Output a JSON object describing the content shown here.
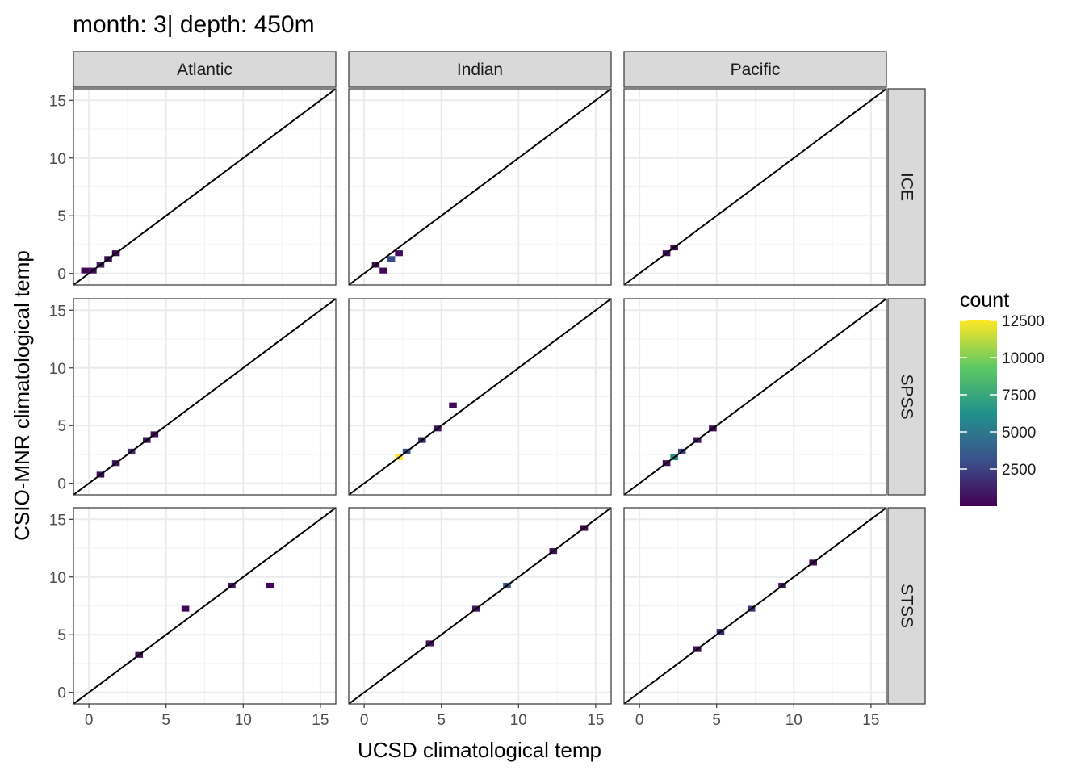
{
  "chart_data": {
    "type": "heatmap",
    "title": "month: 3| depth: 450m",
    "xlabel": "UCSD climatological temp",
    "ylabel": "CSIO-MNR climatological temp",
    "xlim": [
      -1,
      16
    ],
    "ylim": [
      -1,
      16
    ],
    "xticks": [
      "0",
      "5",
      "10",
      "15"
    ],
    "yticks": [
      "0",
      "5",
      "10",
      "15"
    ],
    "col_facets": [
      "Atlantic",
      "Indian",
      "Pacific"
    ],
    "row_facets": [
      "ICE",
      "SPSS",
      "STSS"
    ],
    "bin_width": 0.5,
    "reference_line": "y = x",
    "legend": {
      "title": "count",
      "position": "right",
      "min": 0,
      "max": 12500,
      "ticks": [
        "2500",
        "5000",
        "7500",
        "10000",
        "12500"
      ],
      "colors": [
        "#440154",
        "#3b528b",
        "#21918c",
        "#5ec962",
        "#fde725"
      ]
    },
    "panels": [
      {
        "col": "Atlantic",
        "row": "ICE",
        "bins": [
          {
            "x": 0,
            "y": 0,
            "count": 300
          },
          {
            "x": 0.5,
            "y": 0.5,
            "count": 1200
          },
          {
            "x": 1.0,
            "y": 1.0,
            "count": 500
          },
          {
            "x": 1.5,
            "y": 1.5,
            "count": 200
          },
          {
            "x": -0.5,
            "y": 0,
            "count": 150
          }
        ]
      },
      {
        "col": "Indian",
        "row": "ICE",
        "bins": [
          {
            "x": 0.5,
            "y": 0.5,
            "count": 300
          },
          {
            "x": 1.5,
            "y": 1.0,
            "count": 3000
          },
          {
            "x": 1.0,
            "y": 0,
            "count": 200
          },
          {
            "x": 2.0,
            "y": 1.5,
            "count": 400
          }
        ]
      },
      {
        "col": "Pacific",
        "row": "ICE",
        "bins": [
          {
            "x": 1.5,
            "y": 1.5,
            "count": 300
          },
          {
            "x": 2.0,
            "y": 2.0,
            "count": 200
          }
        ]
      },
      {
        "col": "Atlantic",
        "row": "SPSS",
        "bins": [
          {
            "x": 0.5,
            "y": 0.5,
            "count": 300
          },
          {
            "x": 1.5,
            "y": 1.5,
            "count": 800
          },
          {
            "x": 2.5,
            "y": 2.5,
            "count": 1500
          },
          {
            "x": 3.5,
            "y": 3.5,
            "count": 600
          },
          {
            "x": 4.0,
            "y": 4.0,
            "count": 200
          }
        ]
      },
      {
        "col": "Indian",
        "row": "SPSS",
        "bins": [
          {
            "x": 2.0,
            "y": 2.0,
            "count": 12500
          },
          {
            "x": 2.5,
            "y": 2.5,
            "count": 3000
          },
          {
            "x": 3.5,
            "y": 3.5,
            "count": 1500
          },
          {
            "x": 4.5,
            "y": 4.5,
            "count": 800
          },
          {
            "x": 5.5,
            "y": 6.5,
            "count": 300
          }
        ]
      },
      {
        "col": "Pacific",
        "row": "SPSS",
        "bins": [
          {
            "x": 1.5,
            "y": 1.5,
            "count": 500
          },
          {
            "x": 2.0,
            "y": 2.0,
            "count": 6000
          },
          {
            "x": 2.5,
            "y": 2.5,
            "count": 2500
          },
          {
            "x": 3.5,
            "y": 3.5,
            "count": 800
          },
          {
            "x": 4.5,
            "y": 4.5,
            "count": 300
          }
        ]
      },
      {
        "col": "Atlantic",
        "row": "STSS",
        "bins": [
          {
            "x": 3.0,
            "y": 3.0,
            "count": 400
          },
          {
            "x": 6.0,
            "y": 7.0,
            "count": 300
          },
          {
            "x": 9.0,
            "y": 9.0,
            "count": 600
          },
          {
            "x": 11.5,
            "y": 9.0,
            "count": 200
          }
        ]
      },
      {
        "col": "Indian",
        "row": "STSS",
        "bins": [
          {
            "x": 4.0,
            "y": 4.0,
            "count": 500
          },
          {
            "x": 7.0,
            "y": 7.0,
            "count": 800
          },
          {
            "x": 9.0,
            "y": 9.0,
            "count": 3500
          },
          {
            "x": 12.0,
            "y": 12.0,
            "count": 700
          },
          {
            "x": 14.0,
            "y": 14.0,
            "count": 300
          }
        ]
      },
      {
        "col": "Pacific",
        "row": "STSS",
        "bins": [
          {
            "x": 3.5,
            "y": 3.5,
            "count": 400
          },
          {
            "x": 5.0,
            "y": 5.0,
            "count": 1500
          },
          {
            "x": 7.0,
            "y": 7.0,
            "count": 2000
          },
          {
            "x": 9.0,
            "y": 9.0,
            "count": 800
          },
          {
            "x": 11.0,
            "y": 11.0,
            "count": 300
          }
        ]
      }
    ]
  }
}
